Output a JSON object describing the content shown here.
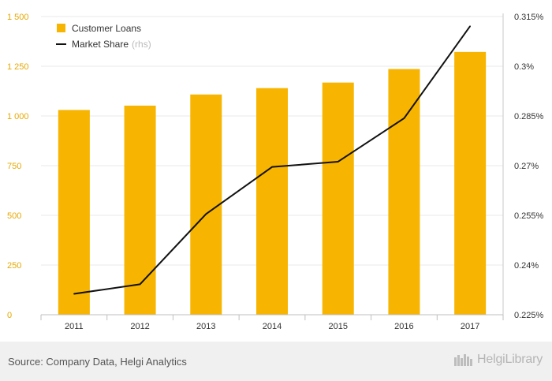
{
  "chart_data": {
    "type": "bar+line",
    "categories": [
      "2011",
      "2012",
      "2013",
      "2014",
      "2015",
      "2016",
      "2017"
    ],
    "series": [
      {
        "name": "Customer Loans",
        "type": "bar",
        "axis": "left",
        "color": "#F7B400",
        "values": [
          1030,
          1052,
          1108,
          1140,
          1168,
          1236,
          1322
        ]
      },
      {
        "name": "Market Share",
        "suffix": "(rhs)",
        "type": "line",
        "axis": "right",
        "color": "#111111",
        "values": [
          0.2313,
          0.2342,
          0.2554,
          0.2696,
          0.2712,
          0.2843,
          0.3121
        ]
      }
    ],
    "left_axis": {
      "ylim": [
        0,
        1500
      ],
      "ticks": [
        0,
        250,
        500,
        750,
        1000,
        1250,
        1500
      ],
      "tick_labels": [
        "0",
        "250",
        "500",
        "750",
        "1 000",
        "1 250",
        "1 500"
      ],
      "color": "#E6A800"
    },
    "right_axis": {
      "ylim": [
        0.225,
        0.315
      ],
      "ticks": [
        0.225,
        0.24,
        0.255,
        0.27,
        0.285,
        0.3,
        0.315
      ],
      "tick_labels": [
        "0.225%",
        "0.24%",
        "0.255%",
        "0.27%",
        "0.285%",
        "0.3%",
        "0.315%"
      ]
    },
    "legend": {
      "position": "top-left",
      "items": [
        {
          "label": "Customer Loans",
          "suffix": ""
        },
        {
          "label": "Market Share",
          "suffix": "(rhs)"
        }
      ]
    },
    "grid": true
  },
  "footer": {
    "source": "Source: Company Data, Helgi Analytics",
    "brand": "HelgiLibrary"
  }
}
